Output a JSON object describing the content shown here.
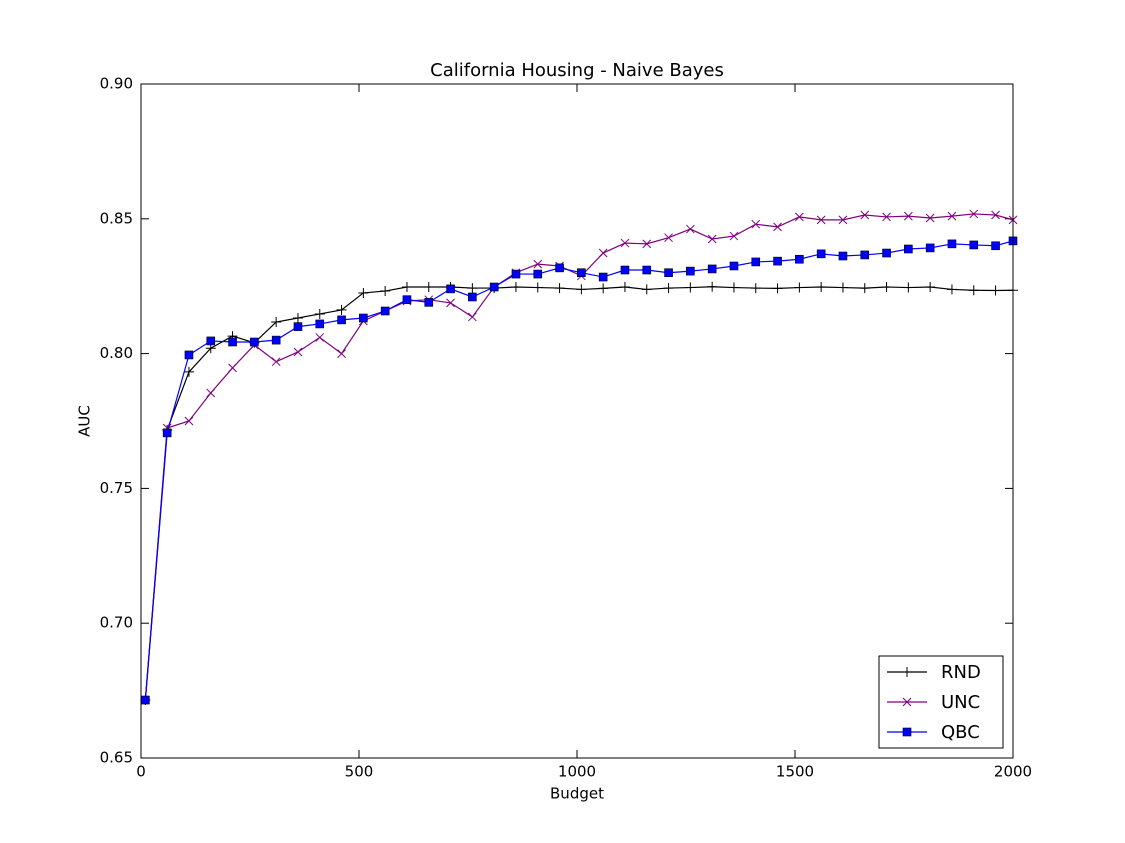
{
  "chart_data": {
    "type": "line",
    "title": "California Housing - Naive Bayes",
    "x_label": "Budget",
    "y_label": "AUC",
    "x": [
      10,
      60,
      110,
      160,
      210,
      260,
      310,
      360,
      410,
      460,
      510,
      560,
      610,
      660,
      710,
      760,
      810,
      860,
      910,
      960,
      1010,
      1060,
      1110,
      1160,
      1210,
      1260,
      1310,
      1360,
      1410,
      1460,
      1510,
      1560,
      1610,
      1660,
      1710,
      1760,
      1810,
      1860,
      1910,
      1960,
      2000
    ],
    "series": [
      {
        "name": "RND",
        "color": "#000000",
        "marker": "plus",
        "values": [
          0.6715,
          0.7717,
          0.7932,
          0.802,
          0.8065,
          0.804,
          0.8117,
          0.8132,
          0.8147,
          0.8162,
          0.8225,
          0.8232,
          0.8247,
          0.8247,
          0.8247,
          0.8243,
          0.8243,
          0.8247,
          0.8245,
          0.8243,
          0.8238,
          0.8242,
          0.8247,
          0.8238,
          0.8243,
          0.8245,
          0.8248,
          0.8245,
          0.8243,
          0.8242,
          0.8245,
          0.8247,
          0.8245,
          0.8243,
          0.8247,
          0.8245,
          0.8247,
          0.8238,
          0.8235,
          0.8234,
          0.8235
        ]
      },
      {
        "name": "UNC",
        "color": "#800080",
        "marker": "cross",
        "values": [
          0.6715,
          0.7724,
          0.775,
          0.7854,
          0.7947,
          0.8032,
          0.797,
          0.8006,
          0.806,
          0.8,
          0.8121,
          0.8158,
          0.8195,
          0.82,
          0.8188,
          0.8136,
          0.8247,
          0.83,
          0.8332,
          0.8325,
          0.8288,
          0.8373,
          0.841,
          0.8407,
          0.843,
          0.8462,
          0.8425,
          0.8436,
          0.848,
          0.847,
          0.8507,
          0.8496,
          0.8496,
          0.8514,
          0.8507,
          0.851,
          0.8503,
          0.851,
          0.8518,
          0.8514,
          0.8496
        ]
      },
      {
        "name": "QBC",
        "color": "#0000ff",
        "marker": "square",
        "values": [
          0.6715,
          0.7706,
          0.7995,
          0.8047,
          0.8043,
          0.8043,
          0.805,
          0.81,
          0.811,
          0.8125,
          0.8132,
          0.8158,
          0.82,
          0.819,
          0.824,
          0.821,
          0.8247,
          0.8295,
          0.8295,
          0.8318,
          0.83,
          0.8284,
          0.831,
          0.831,
          0.83,
          0.8306,
          0.8314,
          0.8325,
          0.834,
          0.8343,
          0.835,
          0.837,
          0.8362,
          0.8366,
          0.8373,
          0.8388,
          0.8392,
          0.8407,
          0.8403,
          0.84,
          0.8418
        ]
      }
    ],
    "xlim": [
      0,
      2000
    ],
    "xticks": [
      0,
      500,
      1000,
      1500,
      2000
    ],
    "ylim": [
      0.65,
      0.9
    ],
    "yticks": [
      0.65,
      {
        "value": 0.7,
        "label": "0.70"
      },
      0.75,
      {
        "value": 0.8,
        "label": "0.80"
      },
      0.85,
      {
        "value": 0.9,
        "label": "0.90"
      }
    ],
    "grid": false,
    "legend": "lower right"
  }
}
